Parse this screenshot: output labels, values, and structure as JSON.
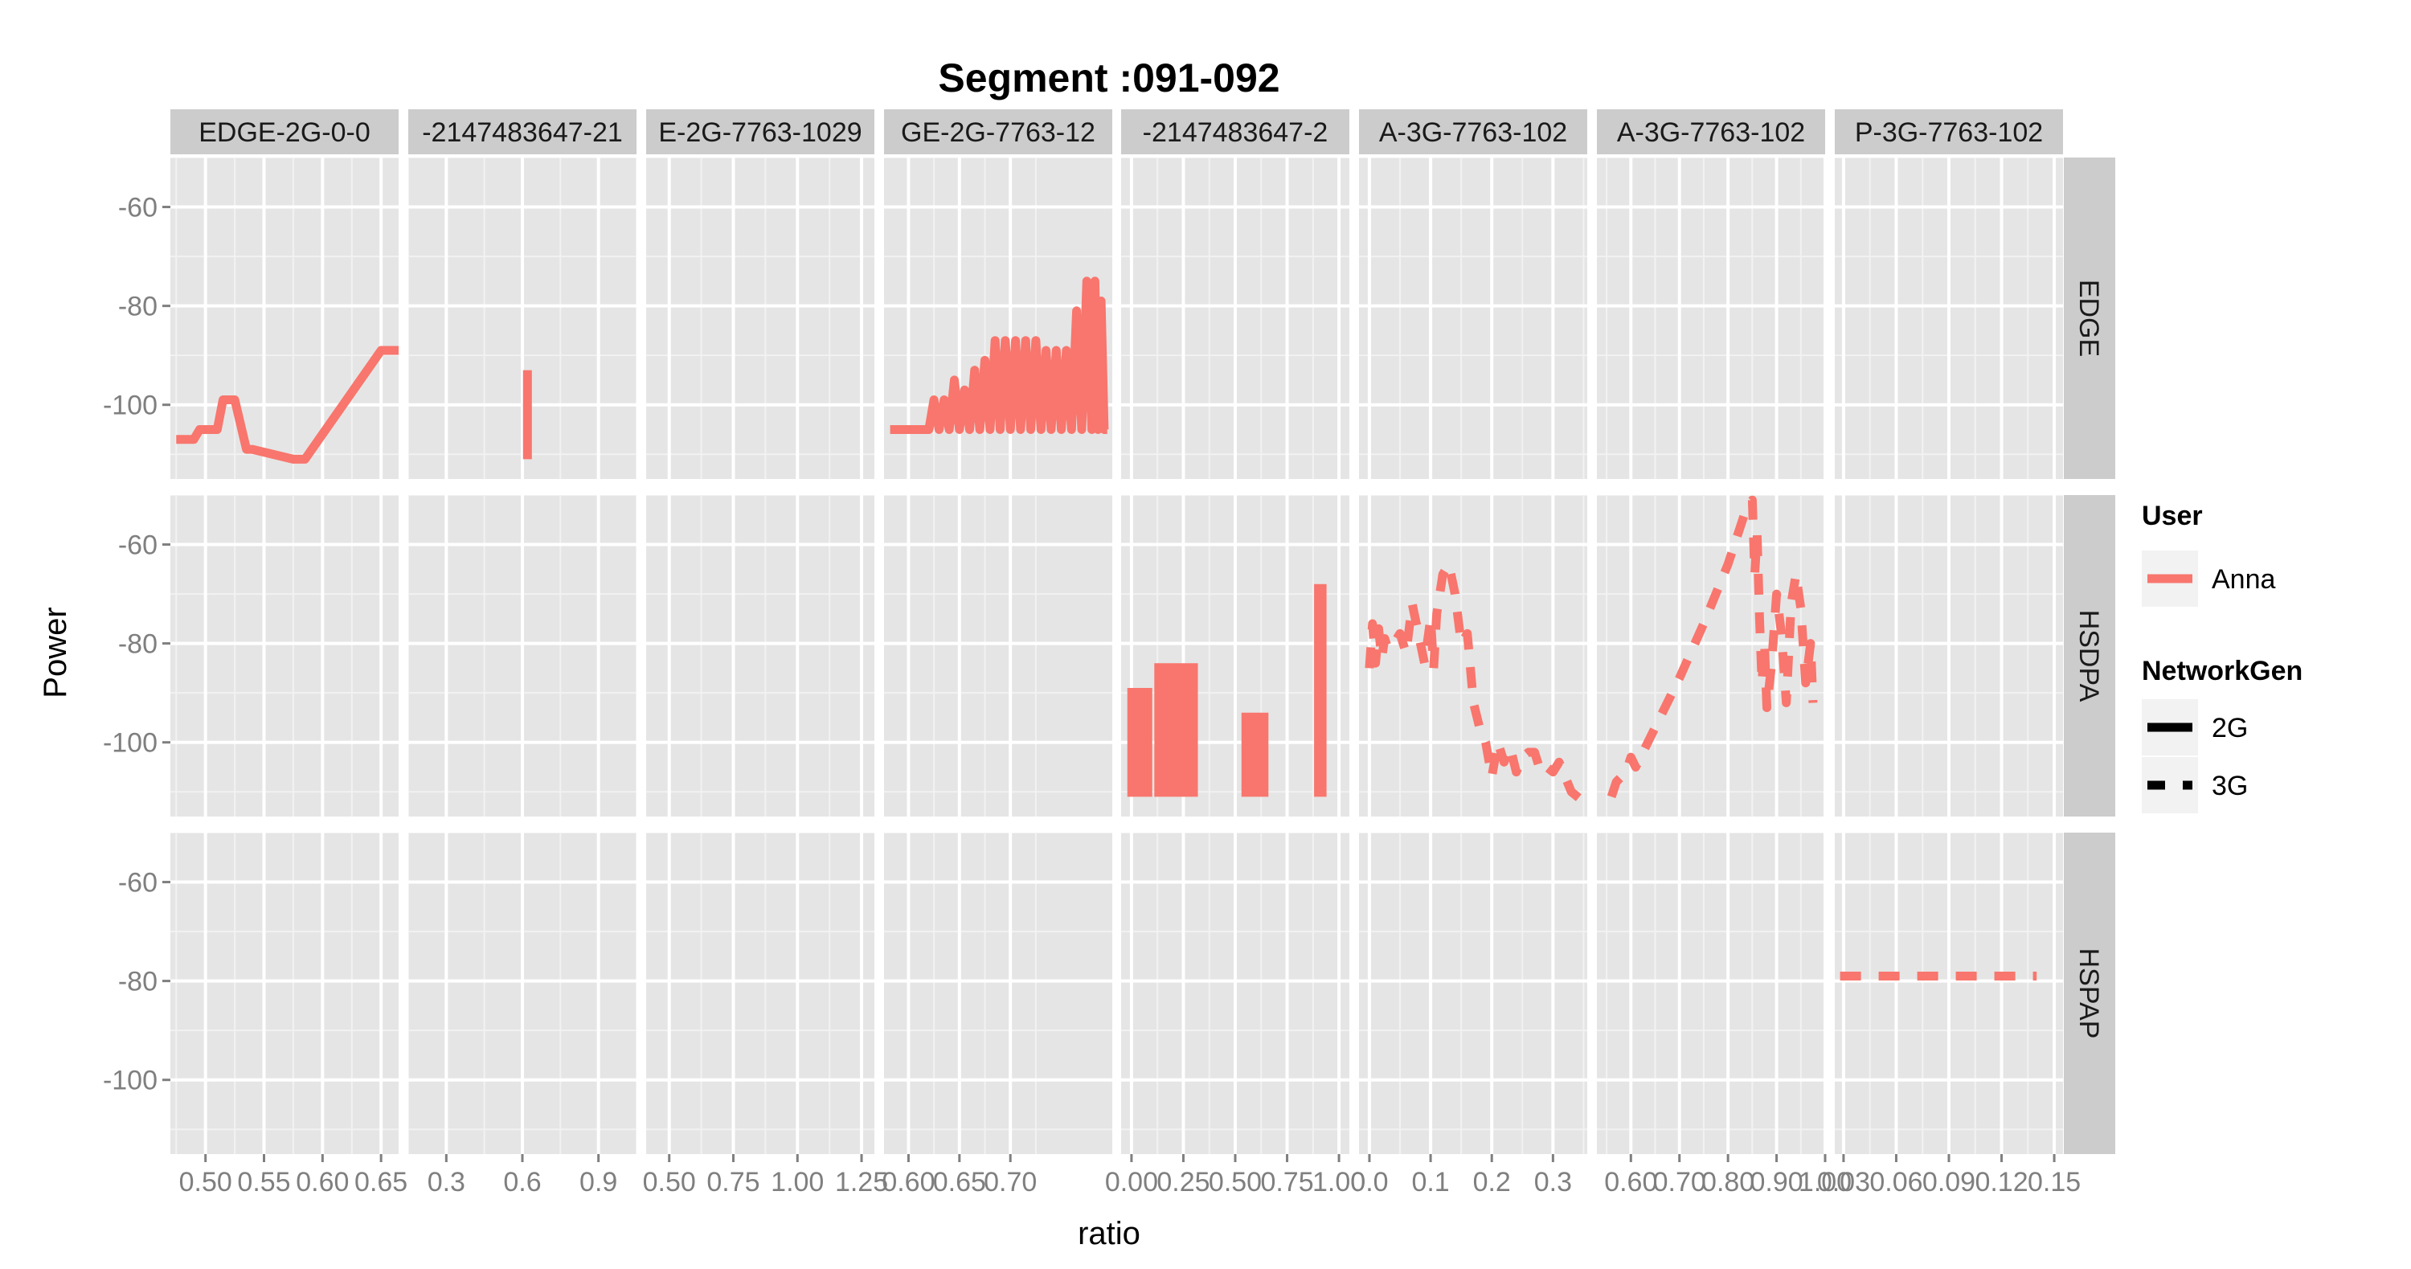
{
  "chart_data": {
    "type": "line",
    "title": "Segment :091-092",
    "xlabel": "ratio",
    "ylabel": "Power",
    "ylim": [
      -115,
      -50
    ],
    "y_ticks": [
      -60,
      -80,
      -100
    ],
    "grid": true,
    "legend_position": "right",
    "column_strips": [
      "EDGE-2G-0-0",
      "-2147483647-21",
      "E-2G-7763-1029",
      "GE-2G-7763-12",
      "-2147483647-2",
      "A-3G-7763-102",
      "A-3G-7763-102",
      "P-3G-7763-102"
    ],
    "row_strips": [
      "EDGE",
      "HSDPA",
      "HSPAP"
    ],
    "panels_x": [
      {
        "xlim": [
          0.47,
          0.665
        ],
        "ticks": [
          0.5,
          0.55,
          0.6,
          0.65
        ],
        "tick_labels": [
          "0.50",
          "0.55",
          "0.60",
          "0.65"
        ]
      },
      {
        "xlim": [
          0.15,
          1.05
        ],
        "ticks": [
          0.3,
          0.6,
          0.9
        ],
        "tick_labels": [
          "0.3",
          "0.6",
          "0.9"
        ]
      },
      {
        "xlim": [
          0.41,
          1.3
        ],
        "ticks": [
          0.5,
          0.75,
          1.0,
          1.25
        ],
        "tick_labels": [
          "0.50",
          "0.75",
          "1.00",
          "1.25"
        ]
      },
      {
        "xlim": [
          0.576,
          0.8
        ],
        "ticks": [
          0.6,
          0.65,
          0.7
        ],
        "tick_labels": [
          "0.60",
          "0.65",
          "0.70"
        ]
      },
      {
        "xlim": [
          -0.05,
          1.05
        ],
        "ticks": [
          0.0,
          0.25,
          0.5,
          0.75,
          1.0
        ],
        "tick_labels": [
          "0.00",
          "0.25",
          "0.50",
          "0.75",
          "1.00"
        ]
      },
      {
        "xlim": [
          -0.017,
          0.356
        ],
        "ticks": [
          0.0,
          0.1,
          0.2,
          0.3
        ],
        "tick_labels": [
          "0.0",
          "0.1",
          "0.2",
          "0.3"
        ]
      },
      {
        "xlim": [
          0.53,
          1.0
        ],
        "ticks": [
          0.6,
          0.7,
          0.8,
          0.9,
          1.0
        ],
        "tick_labels": [
          "0.60",
          "0.70",
          "0.80",
          "0.90",
          "1.00"
        ]
      },
      {
        "xlim": [
          0.025,
          0.155
        ],
        "ticks": [
          0.03,
          0.06,
          0.09,
          0.12,
          0.15
        ],
        "tick_labels": [
          "0.03",
          "0.06",
          "0.09",
          "0.12",
          "0.15"
        ]
      }
    ],
    "legend": {
      "user_title": "User",
      "user_entries": [
        {
          "label": "Anna",
          "color": "#F8766D"
        }
      ],
      "networkgen_title": "NetworkGen",
      "networkgen_entries": [
        {
          "label": "2G",
          "dash": "solid"
        },
        {
          "label": "3G",
          "dash": "dashed"
        }
      ]
    },
    "series": [
      {
        "name": "Anna",
        "network_gen": "2G",
        "row": 0,
        "col": 0,
        "dash": "solid",
        "x": [
          0.475,
          0.49,
          0.495,
          0.51,
          0.515,
          0.525,
          0.535,
          0.54,
          0.575,
          0.585,
          0.65,
          0.665
        ],
        "y": [
          -107,
          -107,
          -105,
          -105,
          -99,
          -99,
          -109,
          -109,
          -111,
          -111,
          -89,
          -89
        ]
      },
      {
        "name": "Anna",
        "network_gen": "2G",
        "row": 0,
        "col": 1,
        "dash": "solid",
        "x": [
          0.62,
          0.62
        ],
        "y": [
          -93,
          -111
        ]
      },
      {
        "name": "Anna",
        "network_gen": "2G",
        "row": 0,
        "col": 3,
        "dash": "solid",
        "x": [
          0.582,
          0.62,
          0.625,
          0.63,
          0.635,
          0.64,
          0.645,
          0.65,
          0.655,
          0.66,
          0.665,
          0.67,
          0.675,
          0.68,
          0.685,
          0.69,
          0.695,
          0.7,
          0.705,
          0.71,
          0.715,
          0.72,
          0.725,
          0.73,
          0.735,
          0.74,
          0.745,
          0.75,
          0.755,
          0.76,
          0.765,
          0.77,
          0.775,
          0.78,
          0.783,
          0.786,
          0.789,
          0.792,
          0.795
        ],
        "y": [
          -105,
          -105,
          -99,
          -105,
          -99,
          -105,
          -95,
          -105,
          -97,
          -105,
          -93,
          -105,
          -91,
          -105,
          -87,
          -105,
          -87,
          -105,
          -87,
          -105,
          -87,
          -105,
          -87,
          -105,
          -89,
          -105,
          -89,
          -105,
          -89,
          -105,
          -81,
          -105,
          -75,
          -105,
          -75,
          -105,
          -79,
          -105,
          -105
        ]
      },
      {
        "name": "Anna",
        "network_gen": "3G",
        "row": 1,
        "col": 4,
        "dash": "band",
        "x": [
          -0.02,
          0.1,
          0.11,
          0.32,
          0.53,
          0.66,
          0.72,
          0.8,
          0.88,
          0.94
        ],
        "y": [
          -111,
          -89,
          -111,
          -84,
          -111,
          -94,
          -111,
          -111,
          -111,
          -68
        ]
      },
      {
        "name": "Anna",
        "network_gen": "3G",
        "row": 1,
        "col": 5,
        "dash": "dashed",
        "x": [
          0.0,
          0.005,
          0.01,
          0.015,
          0.02,
          0.025,
          0.03,
          0.04,
          0.05,
          0.06,
          0.07,
          0.08,
          0.09,
          0.1,
          0.105,
          0.11,
          0.12,
          0.13,
          0.14,
          0.15,
          0.16,
          0.17,
          0.18,
          0.19,
          0.2,
          0.21,
          0.22,
          0.23,
          0.24,
          0.25,
          0.26,
          0.27,
          0.28,
          0.29,
          0.3,
          0.31,
          0.33,
          0.35
        ],
        "y": [
          -85,
          -76,
          -84,
          -77,
          -83,
          -79,
          -81,
          -80,
          -78,
          -82,
          -72,
          -78,
          -84,
          -75,
          -85,
          -74,
          -66,
          -64,
          -70,
          -80,
          -78,
          -92,
          -97,
          -100,
          -107,
          -100,
          -104,
          -101,
          -106,
          -103,
          -102,
          -102,
          -106,
          -105,
          -106,
          -104,
          -110,
          -112
        ]
      },
      {
        "name": "Anna",
        "network_gen": "3G",
        "row": 1,
        "col": 6,
        "dash": "dashed",
        "x": [
          0.56,
          0.57,
          0.59,
          0.6,
          0.61,
          0.65,
          0.7,
          0.75,
          0.8,
          0.83,
          0.84,
          0.85,
          0.855,
          0.86,
          0.865,
          0.87,
          0.875,
          0.88,
          0.89,
          0.9,
          0.91,
          0.92,
          0.93,
          0.94,
          0.95,
          0.96,
          0.97,
          0.975
        ],
        "y": [
          -111,
          -108,
          -106,
          -103,
          -105,
          -97,
          -87,
          -76,
          -64,
          -55,
          -52,
          -51,
          -66,
          -58,
          -75,
          -88,
          -80,
          -93,
          -84,
          -70,
          -78,
          -92,
          -72,
          -66,
          -73,
          -88,
          -80,
          -92
        ]
      },
      {
        "name": "Anna",
        "network_gen": "3G",
        "row": 2,
        "col": 7,
        "dash": "dashed",
        "x": [
          0.028,
          0.14
        ],
        "y": [
          -79,
          -79
        ]
      }
    ]
  }
}
